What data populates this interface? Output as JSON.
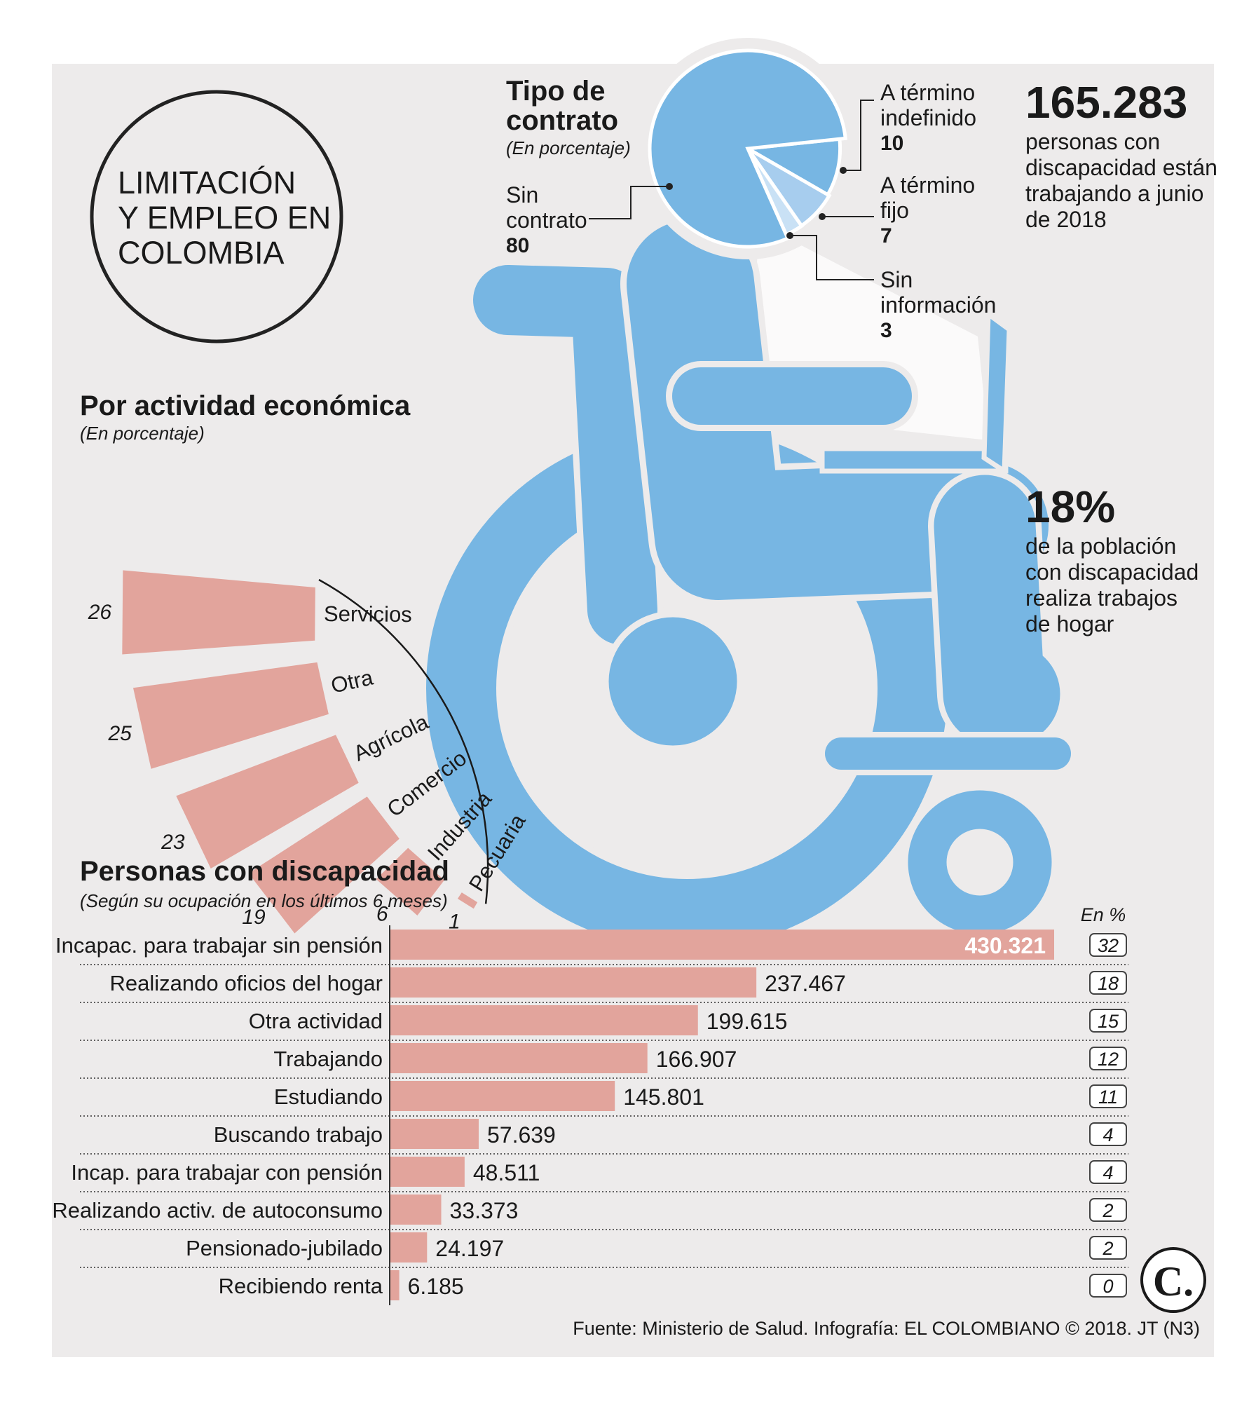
{
  "colors": {
    "bg": "#edebeb",
    "accent": "#77b6e3",
    "bar": "#e2a49c",
    "text": "#1a1a1a"
  },
  "header": {
    "title": [
      "LIMITACIÓN",
      "Y EMPLEO EN",
      "COLOMBIA"
    ]
  },
  "contract": {
    "title": [
      "Tipo de",
      "contrato"
    ],
    "subtitle": "(En porcentaje)",
    "slices": [
      {
        "label": [
          "Sin",
          "contrato"
        ],
        "value": 80
      },
      {
        "label": [
          "A término",
          "indefinido"
        ],
        "value": 10
      },
      {
        "label": [
          "A término",
          "fijo"
        ],
        "value": 7
      },
      {
        "label": [
          "Sin",
          "información"
        ],
        "value": 3
      }
    ]
  },
  "stats": {
    "working": {
      "value": "165.283",
      "text": [
        "personas con",
        "discapacidad están",
        "trabajando a junio",
        "de 2018"
      ]
    },
    "home": {
      "value": "18%",
      "text": [
        "de la población",
        "con discapacidad",
        "realiza trabajos",
        "de hogar"
      ]
    }
  },
  "activity": {
    "title": "Por actividad económica",
    "subtitle": "(En porcentaje)"
  },
  "occupation": {
    "title": "Personas con discapacidad",
    "subtitle": "(Según su ocupación en los últimos 6 meses)",
    "pct_header": "En %"
  },
  "chart_data": [
    {
      "type": "bar",
      "title": "Personas con discapacidad",
      "subtitle": "(Según su ocupación en los últimos 6 meses)",
      "orientation": "horizontal",
      "categories": [
        "Incapac. para trabajar sin pensión",
        "Realizando oficios del hogar",
        "Otra actividad",
        "Trabajando",
        "Estudiando",
        "Buscando trabajo",
        "Incap. para trabajar con pensión",
        "Realizando activ. de autoconsumo",
        "Pensionado-jubilado",
        "Recibiendo renta"
      ],
      "values": [
        430321,
        237467,
        199615,
        166907,
        145801,
        57639,
        48511,
        33373,
        24197,
        6185
      ],
      "value_labels": [
        "430.321",
        "237.467",
        "199.615",
        "166.907",
        "145.801",
        "57.639",
        "48.511",
        "33.373",
        "24.197",
        "6.185"
      ],
      "percent": [
        32,
        18,
        15,
        12,
        11,
        4,
        4,
        2,
        2,
        0
      ],
      "xlim": [
        0,
        430321
      ]
    },
    {
      "type": "bar",
      "title": "Por actividad económica",
      "subtitle": "(En porcentaje)",
      "orientation": "radial",
      "categories": [
        "Pecuaria",
        "Industria",
        "Comercio",
        "Agrícola",
        "Otra",
        "Servicios"
      ],
      "values": [
        1,
        6,
        19,
        23,
        25,
        26
      ]
    },
    {
      "type": "pie",
      "title": "Tipo de contrato",
      "subtitle": "(En porcentaje)",
      "categories": [
        "Sin contrato",
        "A término indefinido",
        "A término fijo",
        "Sin información"
      ],
      "values": [
        80,
        10,
        7,
        3
      ]
    }
  ],
  "footer": {
    "source": "Fuente: Ministerio de Salud. Infografía: EL COLOMBIANO © 2018. JT (N3)",
    "logo": "C."
  }
}
